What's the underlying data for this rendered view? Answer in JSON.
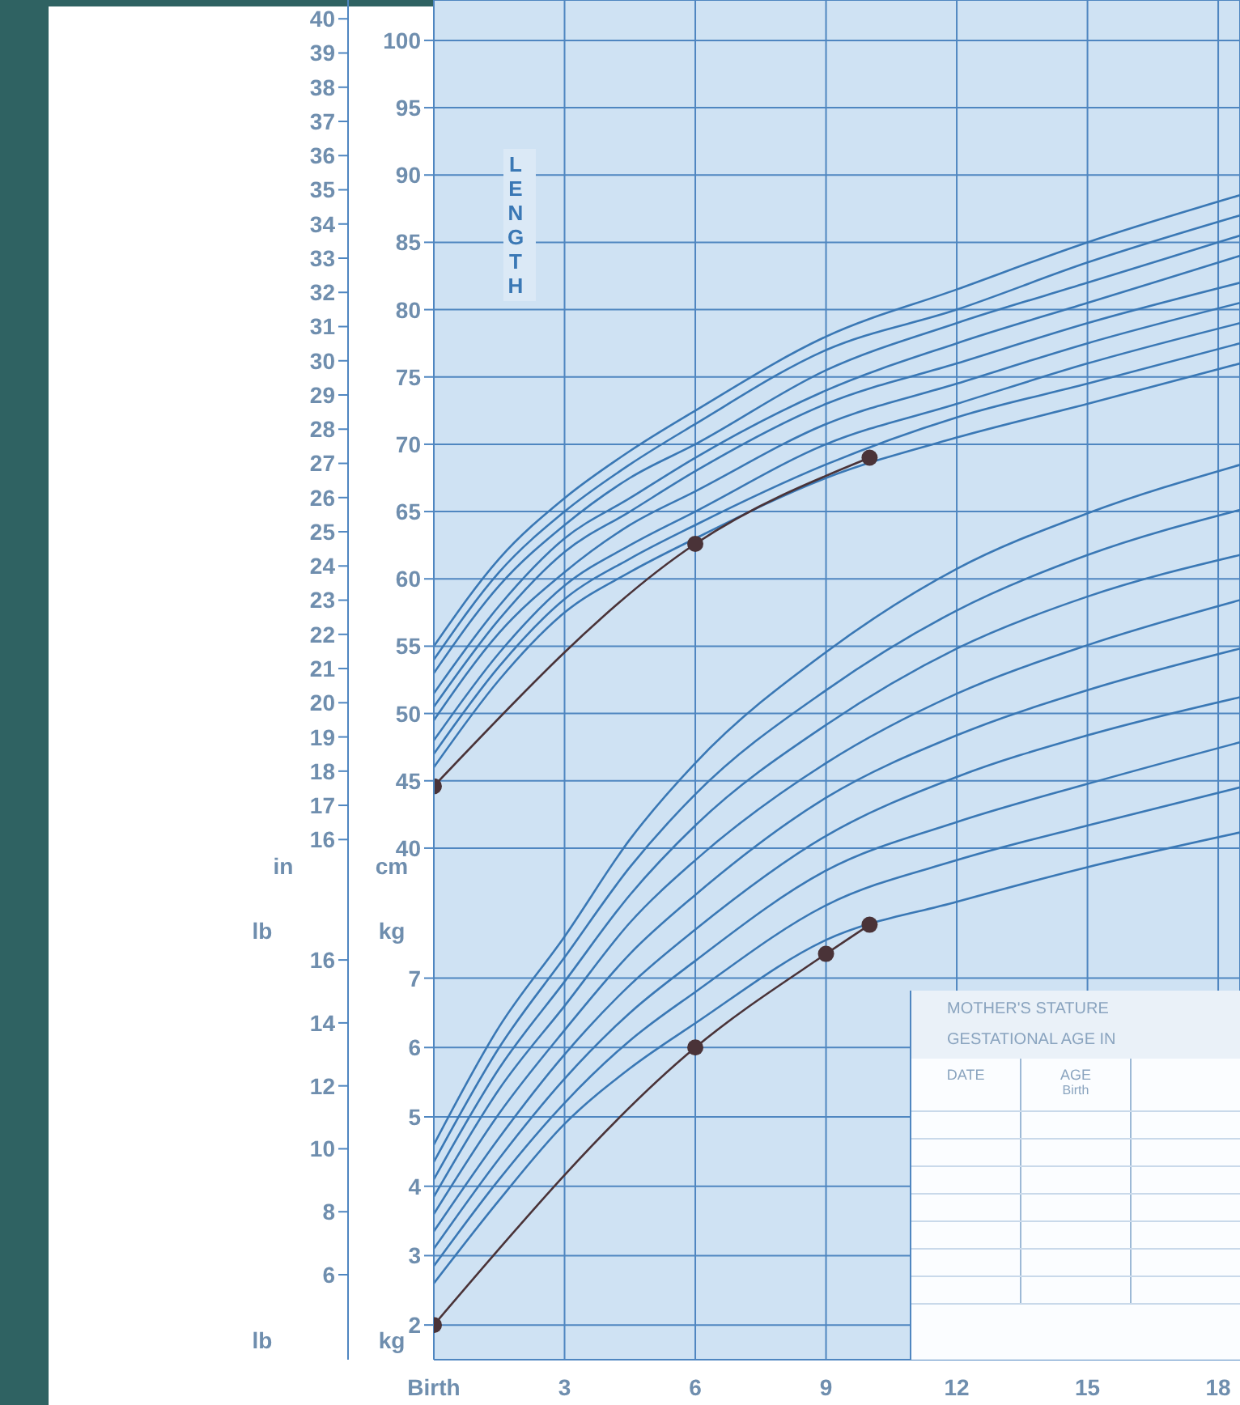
{
  "chart_data": [
    {
      "type": "line",
      "xlim": [
        0,
        18.5
      ],
      "xticks": [
        0,
        3,
        6,
        9,
        12,
        15,
        18
      ],
      "tick_labels": "y",
      "ylim": [
        2,
        103
      ],
      "yticks": [
        40,
        45,
        50,
        55,
        60,
        65,
        70,
        75,
        80,
        85,
        90,
        95,
        100
      ],
      "ylabel": "cm",
      "y2lim": [
        0.79,
        40.55
      ],
      "y2ticks": [
        16,
        17,
        18,
        19,
        20,
        21,
        22,
        23,
        24,
        25,
        26,
        27,
        28,
        29,
        30,
        31,
        32,
        33,
        34,
        35,
        36,
        37,
        38,
        39,
        40
      ],
      "y2label": "in",
      "grid": true,
      "marker": "none",
      "annotations": [
        "LENGTH"
      ],
      "series": [
        {
          "color": "#3a78b5",
          "x": [
            0,
            1.5,
            3,
            4.5,
            6,
            9,
            12,
            15,
            18.5
          ],
          "values": [
            46,
            52.5,
            57.5,
            60.5,
            63,
            67.5,
            70.5,
            73,
            76
          ]
        },
        {
          "color": "#3a78b5",
          "x": [
            0,
            1.5,
            3,
            4.5,
            6,
            9,
            12,
            15,
            18.5
          ],
          "values": [
            47,
            53.5,
            58.5,
            61.5,
            64,
            68.5,
            72,
            74.5,
            77.5
          ]
        },
        {
          "color": "#3a78b5",
          "x": [
            0,
            1.5,
            3,
            4.5,
            6,
            9,
            12,
            15,
            18.5
          ],
          "values": [
            48,
            54.5,
            59.5,
            62.5,
            65,
            70,
            73,
            76,
            79
          ]
        },
        {
          "color": "#3a78b5",
          "x": [
            0,
            1.5,
            3,
            4.5,
            6,
            9,
            12,
            15,
            18.5
          ],
          "values": [
            49.5,
            56,
            60.5,
            64,
            66.5,
            71.5,
            74.5,
            77.5,
            80.5
          ]
        },
        {
          "color": "#3a78b5",
          "x": [
            0,
            1.5,
            3,
            4.5,
            6,
            9,
            12,
            15,
            18.5
          ],
          "values": [
            50.5,
            57,
            62,
            65,
            68,
            73,
            76,
            79,
            82
          ]
        },
        {
          "color": "#3a78b5",
          "x": [
            0,
            1.5,
            3,
            4.5,
            6,
            9,
            12,
            15,
            18.5
          ],
          "values": [
            51.5,
            58,
            63,
            66,
            69,
            74,
            77.5,
            80.5,
            84
          ]
        },
        {
          "color": "#3a78b5",
          "x": [
            0,
            1.5,
            3,
            4.5,
            6,
            9,
            12,
            15,
            18.5
          ],
          "values": [
            53,
            59.5,
            64,
            67.5,
            70,
            75.5,
            79,
            82,
            85.5
          ]
        },
        {
          "color": "#3a78b5",
          "x": [
            0,
            1.5,
            3,
            4.5,
            6,
            9,
            12,
            15,
            18.5
          ],
          "values": [
            54,
            60.5,
            65,
            68.5,
            71.5,
            77,
            80,
            83.5,
            87
          ]
        },
        {
          "color": "#3a78b5",
          "x": [
            0,
            1.5,
            3,
            4.5,
            6,
            9,
            12,
            15,
            18.5
          ],
          "values": [
            55,
            61.5,
            66,
            69.5,
            72.5,
            78,
            81.5,
            85,
            88.5
          ]
        },
        {
          "color": "#4a3338",
          "marker": "circle",
          "x": [
            0,
            6,
            10
          ],
          "values": [
            44.6,
            62.6,
            69
          ]
        }
      ]
    },
    {
      "type": "line",
      "xlim": [
        0,
        18.5
      ],
      "xticks": [
        {
          "value": 0,
          "label": "Birth"
        },
        3,
        6,
        9,
        12,
        15,
        18
      ],
      "ylim": [
        1.5,
        21.1
      ],
      "yticks": [
        2,
        3,
        4,
        5,
        6,
        7
      ],
      "ylabel": "kg",
      "y2lim": [
        3.3,
        46.5
      ],
      "y2ticks": [
        6,
        8,
        10,
        12,
        14,
        16
      ],
      "y2label": "lb",
      "grid": true,
      "marker": "none",
      "annotations": [
        "MOTHER'S STATURE",
        "GESTATIONAL AGE IN",
        "DATE",
        "AGE",
        "Birth"
      ],
      "series": [
        {
          "color": "#3a78b5",
          "x": [
            0,
            1.5,
            3,
            4.5,
            6,
            9,
            12,
            15,
            18.5
          ],
          "values": [
            2.6,
            3.8,
            4.9,
            5.7,
            6.35,
            7.55,
            8.1,
            8.6,
            9.1
          ]
        },
        {
          "color": "#3a78b5",
          "x": [
            0,
            1.5,
            3,
            4.5,
            6,
            9,
            12,
            15,
            18.5
          ],
          "values": [
            2.85,
            4.1,
            5.2,
            6.1,
            6.8,
            8.05,
            8.7,
            9.2,
            9.75
          ]
        },
        {
          "color": "#3a78b5",
          "x": [
            0,
            1.5,
            3,
            4.5,
            6,
            9,
            12,
            15,
            18.5
          ],
          "values": [
            3.1,
            4.4,
            5.55,
            6.5,
            7.25,
            8.55,
            9.25,
            9.8,
            10.4
          ]
        },
        {
          "color": "#3a78b5",
          "x": [
            0,
            1.5,
            3,
            4.5,
            6,
            9,
            12,
            15,
            18.5
          ],
          "values": [
            3.35,
            4.7,
            5.9,
            6.9,
            7.7,
            9.05,
            9.9,
            10.5,
            11.05
          ]
        },
        {
          "color": "#3a78b5",
          "x": [
            0,
            1.5,
            3,
            4.5,
            6,
            9,
            12,
            15,
            18.5
          ],
          "values": [
            3.6,
            5.05,
            6.25,
            7.35,
            8.2,
            9.6,
            10.5,
            11.15,
            11.75
          ]
        },
        {
          "color": "#3a78b5",
          "x": [
            0,
            1.5,
            3,
            4.5,
            6,
            9,
            12,
            15,
            18.5
          ],
          "values": [
            3.85,
            5.4,
            6.6,
            7.8,
            8.7,
            10.1,
            11.1,
            11.8,
            12.45
          ]
        },
        {
          "color": "#3a78b5",
          "x": [
            0,
            1.5,
            3,
            4.5,
            6,
            9,
            12,
            15,
            18.5
          ],
          "values": [
            4.1,
            5.7,
            6.95,
            8.2,
            9.2,
            10.65,
            11.75,
            12.5,
            13.1
          ]
        },
        {
          "color": "#3a78b5",
          "x": [
            0,
            1.5,
            3,
            4.5,
            6,
            9,
            12,
            15,
            18.5
          ],
          "values": [
            4.35,
            6,
            7.3,
            8.6,
            9.65,
            11.15,
            12.3,
            13.1,
            13.75
          ]
        },
        {
          "color": "#3a78b5",
          "x": [
            0,
            1.5,
            3,
            4.5,
            6,
            9,
            12,
            15,
            18.5
          ],
          "values": [
            4.6,
            6.3,
            7.6,
            9,
            10.1,
            11.7,
            12.9,
            13.7,
            14.4
          ]
        },
        {
          "color": "#4a3338",
          "marker": "circle",
          "x": [
            0,
            6,
            9,
            10
          ],
          "values": [
            2,
            6,
            7.35,
            7.77
          ]
        }
      ]
    }
  ]
}
